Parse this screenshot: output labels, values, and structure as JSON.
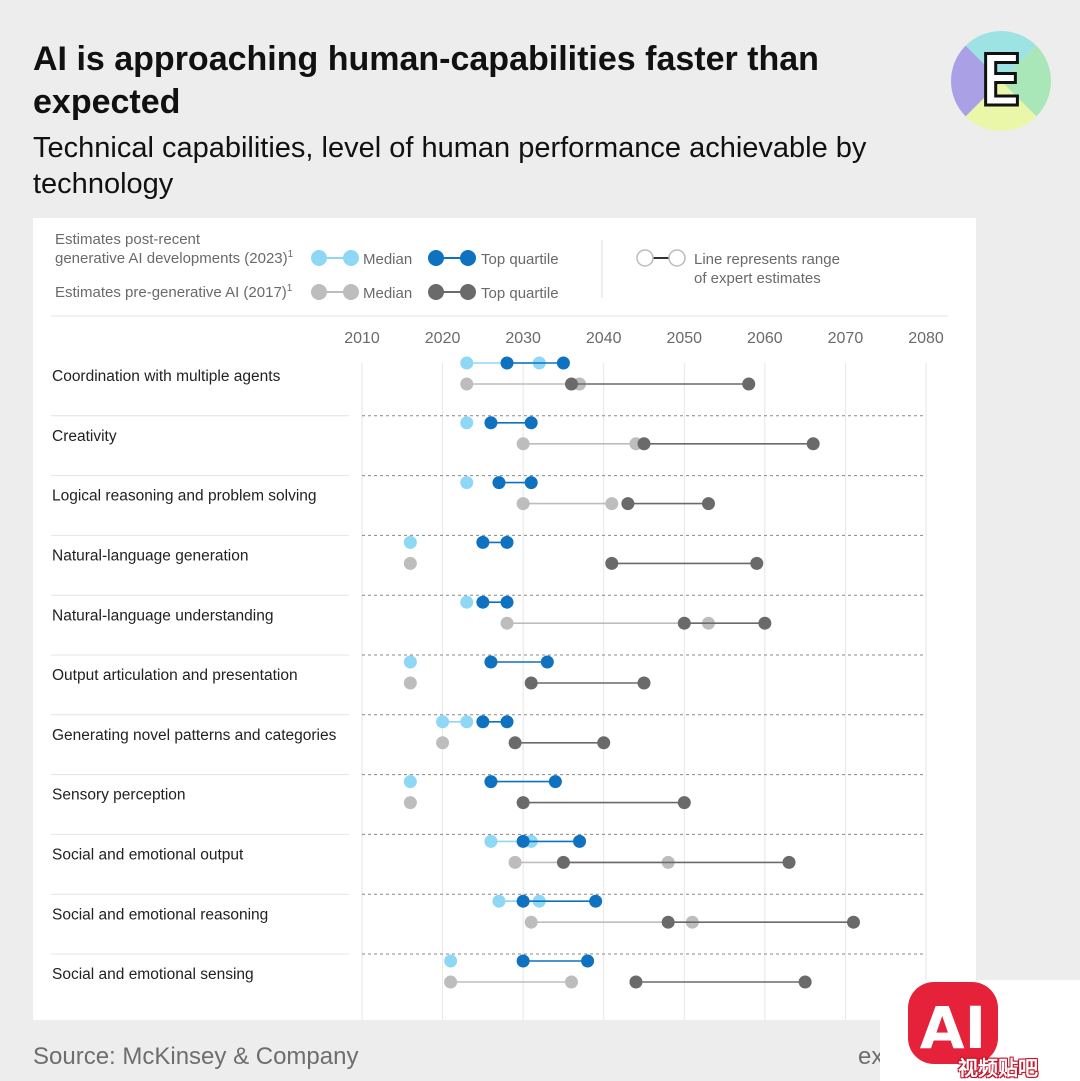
{
  "header": {
    "title": "AI is approaching human-capabilities faster than expected",
    "subtitle": "Technical capabilities, level of human performance achievable by technology"
  },
  "logo": {
    "icon": "letter-e-logo-icon",
    "letter": "E"
  },
  "legend": {
    "group_2023_line1": "Estimates post-recent",
    "group_2023_line2": "generative AI developments (2023)",
    "group_2017": "Estimates pre-generative AI (2017)",
    "footnote_mark": "1",
    "median": "Median",
    "top_quartile": "Top quartile",
    "range_line1": "Line represents range",
    "range_line2": "of expert estimates"
  },
  "colors": {
    "median_2023": "#8ed8f5",
    "top_quartile_2023": "#0f72c0",
    "median_2017": "#bdbdbd",
    "top_quartile_2017": "#6a6a6a"
  },
  "chart_data": {
    "type": "dumbbell",
    "x_ticks": [
      2010,
      2020,
      2030,
      2040,
      2050,
      2060,
      2070,
      2080
    ],
    "xlim": [
      2010,
      2080
    ],
    "legend_position": "top",
    "rows": [
      {
        "label": "Coordination with multiple agents",
        "m2023": [
          2023,
          2032
        ],
        "q2023": [
          2028,
          2035
        ],
        "m2017": [
          2023,
          2037
        ],
        "q2017": [
          2036,
          2058
        ]
      },
      {
        "label": "Creativity",
        "m2023": [
          2023,
          2023
        ],
        "q2023": [
          2026,
          2031
        ],
        "m2017": [
          2030,
          2044
        ],
        "q2017": [
          2045,
          2066
        ]
      },
      {
        "label": "Logical reasoning and problem solving",
        "m2023": [
          2023,
          2023
        ],
        "q2023": [
          2027,
          2031
        ],
        "m2017": [
          2030,
          2041
        ],
        "q2017": [
          2043,
          2053
        ]
      },
      {
        "label": "Natural-language generation",
        "m2023": [
          2016,
          2016
        ],
        "q2023": [
          2025,
          2028
        ],
        "m2017": [
          2016,
          2016
        ],
        "q2017": [
          2041,
          2059
        ]
      },
      {
        "label": "Natural-language understanding",
        "m2023": [
          2023,
          2023
        ],
        "q2023": [
          2025,
          2028
        ],
        "m2017": [
          2028,
          2053
        ],
        "q2017": [
          2050,
          2060
        ]
      },
      {
        "label": "Output articulation and presentation",
        "m2023": [
          2016,
          2016
        ],
        "q2023": [
          2026,
          2033
        ],
        "m2017": [
          2016,
          2016
        ],
        "q2017": [
          2031,
          2045
        ]
      },
      {
        "label": "Generating novel patterns and categories",
        "m2023": [
          2020,
          2023
        ],
        "q2023": [
          2025,
          2028
        ],
        "m2017": [
          2020,
          2020
        ],
        "q2017": [
          2029,
          2040
        ]
      },
      {
        "label": "Sensory perception",
        "m2023": [
          2016,
          2016
        ],
        "q2023": [
          2026,
          2034
        ],
        "m2017": [
          2016,
          2016
        ],
        "q2017": [
          2030,
          2050
        ]
      },
      {
        "label": "Social and emotional output",
        "m2023": [
          2026,
          2031
        ],
        "q2023": [
          2030,
          2037
        ],
        "m2017": [
          2029,
          2048
        ],
        "q2017": [
          2035,
          2063
        ]
      },
      {
        "label": "Social and emotional reasoning",
        "m2023": [
          2027,
          2032
        ],
        "q2023": [
          2030,
          2039
        ],
        "m2017": [
          2031,
          2051
        ],
        "q2017": [
          2048,
          2071
        ]
      },
      {
        "label": "Social and emotional sensing",
        "m2023": [
          2021,
          2021
        ],
        "q2023": [
          2030,
          2038
        ],
        "m2017": [
          2021,
          2036
        ],
        "q2017": [
          2044,
          2065
        ]
      }
    ]
  },
  "footer": {
    "source": "Source: McKinsey & Company",
    "right_text": "ex"
  },
  "badge": {
    "text": "AI",
    "caption": "视频贴吧"
  }
}
